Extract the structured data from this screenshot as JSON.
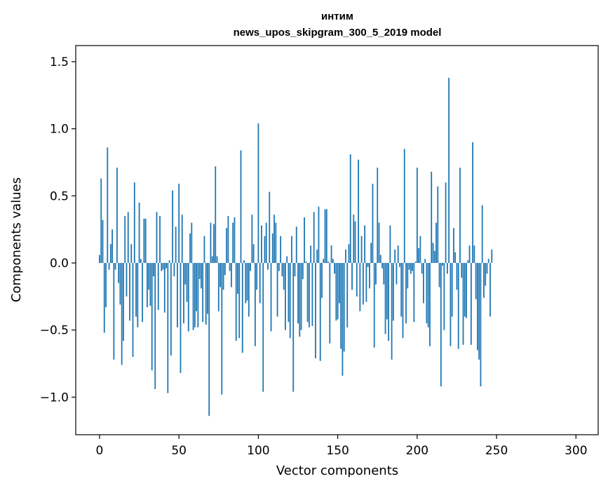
{
  "chart_data": {
    "type": "bar",
    "title_line1": "интим",
    "title_line2": "news_upos_skipgram_300_5_2019 model",
    "xlabel": "Vector components",
    "ylabel": "Components values",
    "xlim": [
      -15,
      314
    ],
    "ylim": [
      -1.28,
      1.62
    ],
    "xticks": [
      0,
      50,
      100,
      150,
      200,
      250,
      300
    ],
    "xtick_labels": [
      "0",
      "50",
      "100",
      "150",
      "200",
      "250",
      "300"
    ],
    "yticks": [
      -1.0,
      -0.5,
      0.0,
      0.5,
      1.0,
      1.5
    ],
    "ytick_labels": [
      "−1.0",
      "−0.5",
      "0.0",
      "0.5",
      "1.0",
      "1.5"
    ],
    "bar_color": "#1f77b4",
    "values": [
      0.06,
      0.63,
      0.32,
      -0.52,
      -0.33,
      0.86,
      -0.05,
      0.14,
      0.25,
      -0.72,
      -0.05,
      0.71,
      -0.15,
      -0.31,
      -0.76,
      -0.58,
      0.35,
      -0.25,
      0.38,
      -0.43,
      0.14,
      -0.7,
      0.6,
      -0.4,
      -0.48,
      0.45,
      0.03,
      -0.44,
      0.33,
      0.33,
      -0.33,
      -0.2,
      -0.32,
      -0.8,
      -0.1,
      -0.94,
      0.38,
      -0.35,
      0.35,
      -0.06,
      -0.05,
      -0.37,
      -0.04,
      -0.97,
      0.02,
      -0.69,
      0.54,
      -0.1,
      0.27,
      -0.48,
      0.59,
      -0.82,
      0.36,
      -0.45,
      -0.16,
      -0.29,
      -0.51,
      0.22,
      0.3,
      -0.5,
      -0.48,
      -0.36,
      -0.48,
      -0.12,
      -0.19,
      -0.44,
      0.2,
      -0.46,
      -0.38,
      -1.14,
      0.3,
      0.05,
      0.29,
      0.72,
      0.05,
      -0.36,
      -0.18,
      -0.98,
      -0.2,
      -0.09,
      0.26,
      0.35,
      -0.06,
      -0.18,
      0.3,
      0.34,
      -0.58,
      -0.23,
      -0.56,
      0.84,
      -0.67,
      0.02,
      -0.3,
      -0.28,
      -0.4,
      -0.06,
      0.36,
      0.14,
      -0.62,
      -0.2,
      1.04,
      -0.3,
      0.28,
      -0.96,
      0.2,
      0.3,
      -0.05,
      0.53,
      -0.51,
      0.22,
      0.36,
      0.3,
      -0.4,
      -0.06,
      0.2,
      -0.1,
      -0.2,
      -0.5,
      0.05,
      -0.44,
      -0.56,
      0.2,
      -0.96,
      -0.1,
      0.27,
      -0.45,
      -0.55,
      -0.5,
      -0.12,
      0.34,
      0.01,
      -0.44,
      -0.48,
      0.13,
      -0.47,
      0.38,
      -0.71,
      0.1,
      0.42,
      -0.73,
      -0.26,
      0.03,
      0.4,
      0.4,
      0.01,
      -0.6,
      0.13,
      0.03,
      -0.08,
      -0.43,
      -0.42,
      -0.3,
      -0.64,
      -0.84,
      -0.66,
      0.1,
      -0.48,
      0.14,
      0.81,
      -0.2,
      0.36,
      0.31,
      -0.25,
      0.77,
      -0.36,
      0.2,
      -0.31,
      0.28,
      -0.29,
      -0.03,
      -0.19,
      0.15,
      0.59,
      -0.63,
      -0.16,
      0.71,
      0.3,
      0.06,
      -0.04,
      -0.16,
      -0.53,
      -0.42,
      -0.58,
      0.28,
      -0.72,
      -0.43,
      0.1,
      -0.16,
      0.13,
      -0.03,
      -0.4,
      -0.56,
      0.85,
      -0.45,
      -0.19,
      -0.05,
      -0.08,
      -0.06,
      -0.44,
      0.01,
      0.71,
      0.11,
      0.2,
      -0.08,
      -0.3,
      0.03,
      -0.45,
      -0.48,
      -0.62,
      0.68,
      0.15,
      0.09,
      0.3,
      0.57,
      -0.18,
      -0.92,
      -0.02,
      -0.5,
      0.6,
      -0.08,
      1.38,
      -0.62,
      -0.4,
      0.26,
      0.08,
      -0.2,
      -0.64,
      0.71,
      -0.11,
      -0.61,
      -0.4,
      -0.41,
      0.02,
      0.13,
      -0.61,
      0.9,
      0.13,
      -0.27,
      -0.65,
      -0.72,
      -0.92,
      0.43,
      -0.26,
      -0.17,
      -0.08,
      0.03,
      -0.4,
      0.1
    ]
  }
}
